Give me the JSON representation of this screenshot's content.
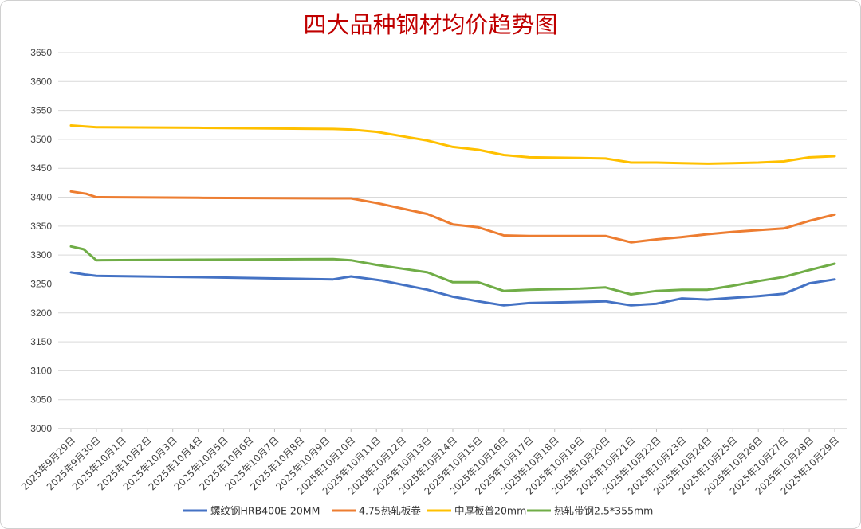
{
  "chart_data": {
    "type": "line",
    "title": "四大品种钢材均价趋势图",
    "xlabel": "",
    "ylabel": "",
    "ylim": [
      3000,
      3650
    ],
    "yticks": [
      3000,
      3050,
      3100,
      3150,
      3200,
      3250,
      3300,
      3350,
      3400,
      3450,
      3500,
      3550,
      3600,
      3650
    ],
    "grid": "horizontal",
    "legend_position": "bottom",
    "x_labels": [
      "2025年9月29日",
      "2025年9月30日",
      "2025年10月1日",
      "2025年10月2日",
      "2025年10月3日",
      "2025年10月4日",
      "2025年10月5日",
      "2025年10月6日",
      "2025年10月7日",
      "2025年10月8日",
      "2025年10月9日",
      "2025年10月10日",
      "2025年10月11日",
      "2025年10月12日",
      "2025年10月13日",
      "2025年10月14日",
      "2025年10月15日",
      "2025年10月16日",
      "2025年10月17日",
      "2025年10月18日",
      "2025年10月19日",
      "2025年10月20日",
      "2025年10月21日",
      "2025年10月22日",
      "2025年10月23日",
      "2025年10月24日",
      "2025年10月25日",
      "2025年10月26日",
      "2025年10月27日",
      "2025年10月28日",
      "2025年10月29日"
    ],
    "series": [
      {
        "name": "螺纹钢HRB400E 20MM",
        "color": "#4472c4",
        "points": [
          [
            0,
            3270
          ],
          [
            0.6,
            3266
          ],
          [
            1,
            3264
          ],
          [
            4.5,
            3262
          ],
          [
            10.3,
            3258
          ],
          [
            11,
            3263
          ],
          [
            12.2,
            3256
          ],
          [
            14,
            3240
          ],
          [
            15,
            3228
          ],
          [
            16,
            3220
          ],
          [
            17,
            3213
          ],
          [
            18,
            3217
          ],
          [
            20,
            3219
          ],
          [
            21,
            3220
          ],
          [
            22,
            3213
          ],
          [
            23,
            3216
          ],
          [
            24,
            3225
          ],
          [
            25,
            3223
          ],
          [
            26,
            3226
          ],
          [
            27,
            3229
          ],
          [
            28,
            3233
          ],
          [
            29,
            3251
          ],
          [
            30,
            3258
          ]
        ]
      },
      {
        "name": "4.75热轧板卷",
        "color": "#ed7d31",
        "points": [
          [
            0,
            3410
          ],
          [
            0.6,
            3406
          ],
          [
            1,
            3400
          ],
          [
            5,
            3399
          ],
          [
            10.3,
            3398
          ],
          [
            11,
            3398
          ],
          [
            12,
            3390
          ],
          [
            14,
            3371
          ],
          [
            15,
            3353
          ],
          [
            16,
            3348
          ],
          [
            17,
            3334
          ],
          [
            18,
            3333
          ],
          [
            20,
            3333
          ],
          [
            21,
            3333
          ],
          [
            22,
            3322
          ],
          [
            23,
            3327
          ],
          [
            24,
            3331
          ],
          [
            25,
            3336
          ],
          [
            26,
            3340
          ],
          [
            27,
            3343
          ],
          [
            28,
            3346
          ],
          [
            29,
            3359
          ],
          [
            30,
            3370
          ]
        ]
      },
      {
        "name": "中厚板普20mm",
        "color": "#ffc000",
        "points": [
          [
            0,
            3524
          ],
          [
            1,
            3521
          ],
          [
            5,
            3520
          ],
          [
            10.3,
            3518
          ],
          [
            11,
            3517
          ],
          [
            12,
            3513
          ],
          [
            14,
            3498
          ],
          [
            15,
            3487
          ],
          [
            16,
            3482
          ],
          [
            17,
            3473
          ],
          [
            18,
            3469
          ],
          [
            20,
            3468
          ],
          [
            21,
            3467
          ],
          [
            22,
            3460
          ],
          [
            23,
            3460
          ],
          [
            24,
            3459
          ],
          [
            25,
            3458
          ],
          [
            26,
            3459
          ],
          [
            27,
            3460
          ],
          [
            28,
            3462
          ],
          [
            29,
            3469
          ],
          [
            30,
            3471
          ]
        ]
      },
      {
        "name": "热轧带钢2.5*355mm",
        "color": "#70ad47",
        "points": [
          [
            0,
            3315
          ],
          [
            0.5,
            3310
          ],
          [
            1,
            3291
          ],
          [
            5,
            3292
          ],
          [
            10.3,
            3293
          ],
          [
            11,
            3291
          ],
          [
            12,
            3283
          ],
          [
            14,
            3270
          ],
          [
            15,
            3253
          ],
          [
            16,
            3253
          ],
          [
            17,
            3238
          ],
          [
            18,
            3240
          ],
          [
            20,
            3242
          ],
          [
            21,
            3244
          ],
          [
            22,
            3232
          ],
          [
            23,
            3238
          ],
          [
            24,
            3240
          ],
          [
            25,
            3240
          ],
          [
            26,
            3247
          ],
          [
            27,
            3255
          ],
          [
            28,
            3262
          ],
          [
            29,
            3274
          ],
          [
            30,
            3285
          ]
        ]
      }
    ]
  }
}
